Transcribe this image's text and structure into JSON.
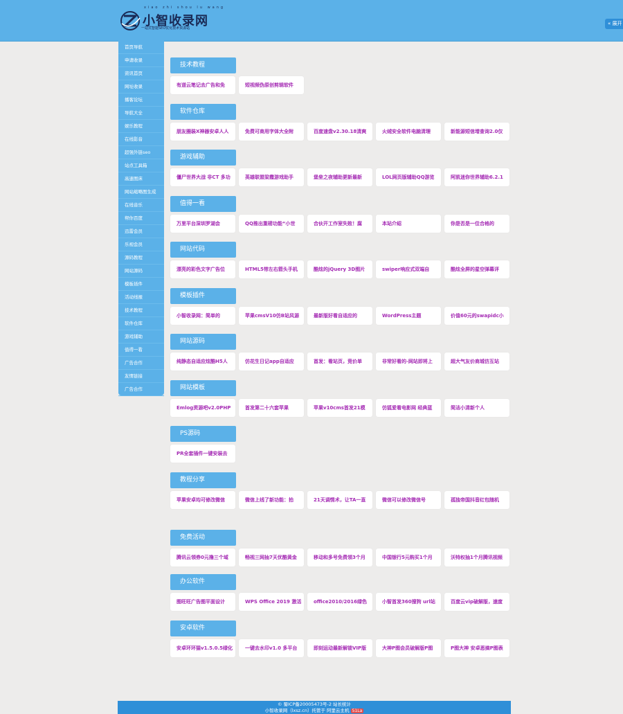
{
  "header": {
    "logo_title": "小智收录网",
    "logo_pinyin": "xiao zhi shou lu wang",
    "logo_sub": "一站式智能SEO优化技术资源站",
    "expand_label": "展开"
  },
  "colors": {
    "header": "#5bb1e8",
    "card_text": "#a52bb4",
    "footer": "#2f8fd8"
  },
  "sidebar": {
    "items": [
      "首页导航",
      "申请收录",
      "资讯首页",
      "网址收录",
      "播客论坛",
      "导航大全",
      "娱乐教程",
      "在线影音",
      "超强外链seo",
      "站点工具箱",
      "高速图床",
      "网站缩略图生成",
      "在线音乐",
      "帮你百度",
      "迅雷会员",
      "乐视会员",
      "源码教程",
      "网站源码",
      "模板插件",
      "活动线报",
      "技术教程",
      "软件仓库",
      "游戏辅助",
      "值得一看",
      "广告合作",
      "友情链接",
      "广告合作"
    ]
  },
  "sections": [
    {
      "title": "技术教程",
      "items": [
        "有道云笔记去广告和免",
        "短视频伪原创剪辑软件"
      ]
    },
    {
      "title": "软件仓库",
      "items": [
        "朋友圈装X神器安卓人人",
        "免费可商用字体大全附",
        "百度速盘v2.30.18清爽",
        "火绒安全软件电脑清理",
        "新能源短信增查询2.0仅"
      ]
    },
    {
      "title": "游戏辅助",
      "items": [
        "僵尸世界大战 非CT 多功",
        "英雄联盟梁霞游戏助手",
        "堡垒之夜辅助更新最新",
        "LOL网页版辅助QQ游览",
        "阿凯迷你世界辅助6.2.1"
      ]
    },
    {
      "title": "值得一看",
      "items": [
        "万里平台深圳罗湖会",
        "QQ推出重磅功能“小世",
        "合伙开工作室失败！腐",
        "本站介绍",
        "你是否是一位合格的"
      ]
    },
    {
      "title": "网站代码",
      "items": [
        "漂亮的彩色文字广告位",
        "HTML5带左右箭头手机",
        "酷炫的jQuery 3D图片",
        "swiper响应式双端自",
        "酷炫全屏的星空弹幕评"
      ]
    },
    {
      "title": "模板插件",
      "items": [
        "小智收录网：简单的",
        "苹果cmsV10仿B站风源",
        "最新版好看自适应的",
        "WordPress主题",
        "价值60元的swapidc小"
      ]
    },
    {
      "title": "网站源码",
      "items": [
        "纯静态自适应炫酷H5人",
        "仿花生日记app自适应",
        "首发：看站页，竞价单",
        "非常好看的-网站即将上",
        "超大气友价商城仿互站"
      ]
    },
    {
      "title": "网站模板",
      "items": [
        "Emlog资源吧v2.0PHP",
        "首发第二十六套苹果",
        "苹果v10cms首发21模",
        "仿狐爱看电影网 经典蓝",
        "简洁小清新个人"
      ]
    },
    {
      "title": "PS源码",
      "items": [
        "PR全套插件一键安装去"
      ]
    },
    {
      "title": "教程分享",
      "items": [
        "苹果安卓均可修改微信",
        "微信上线了新功能：拍",
        "21天调情术，让TA一直",
        "微信可以修改微信号",
        "孤独帝国抖音红包随机"
      ]
    },
    {
      "title": "免费活动",
      "items": [
        "腾讯云领券0元撸三个域",
        "畅视三网抽7天优酷黄金",
        "移动和多号免费领3个月",
        "中国银行5元购买1个月",
        "沃特权抽1个月腾讯视频"
      ]
    },
    {
      "title": "办公软件",
      "items": [
        "图旺旺广告图平面设计",
        "WPS Office 2019 激活",
        "office2010/2016绿色",
        "小智首发360搜狗 url站",
        "百度云vip破解版，速度"
      ]
    },
    {
      "title": "安卓软件",
      "items": [
        "安卓环环猫v1.5.0.5绿化",
        "一键去水印v1.0 多平台",
        "即刻运动最新解锁VIP版",
        "大神P图会员破解版P图",
        "P图大神 安卓恶搞P图表"
      ]
    }
  ],
  "footer": {
    "line1": "© 蜀ICP备20005473号-2 站长统计",
    "line2": "小智收录网（lxsz.cn）托管于 阿里云主机",
    "badge": "51La"
  }
}
